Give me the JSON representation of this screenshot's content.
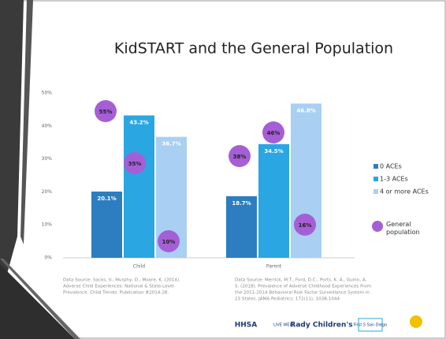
{
  "chart_data": {
    "type": "bar",
    "title": "KidSTART and the General Population",
    "categories": [
      "Child",
      "Parent"
    ],
    "series": [
      {
        "name": "0 ACEs",
        "color": "#2c7ec0",
        "values": [
          20.1,
          18.7
        ],
        "value_labels": [
          "20.1%",
          "18.7%"
        ]
      },
      {
        "name": "1-3 ACEs",
        "color": "#2aa6e2",
        "values": [
          43.2,
          34.5
        ],
        "value_labels": [
          "43.2%",
          "34.5%"
        ]
      },
      {
        "name": "4 or more ACEs",
        "color": "#a9d0f2",
        "values": [
          36.7,
          46.8
        ],
        "value_labels": [
          "36.7%",
          "46.8%"
        ]
      }
    ],
    "comparison": {
      "name": "General population",
      "color": "#a55fd6",
      "values": [
        [
          55,
          35,
          10
        ],
        [
          38,
          46,
          16
        ]
      ],
      "value_labels": [
        [
          "55%",
          "35%",
          "10%"
        ],
        [
          "38%",
          "46%",
          "16%"
        ]
      ]
    },
    "ylim": [
      0,
      50
    ],
    "yticks": [
      {
        "value": 0,
        "label": "0%"
      },
      {
        "value": 10,
        "label": "10%"
      },
      {
        "value": 20,
        "label": "20%"
      },
      {
        "value": 30,
        "label": "30%"
      },
      {
        "value": 40,
        "label": "40%"
      },
      {
        "value": 50,
        "label": "50%"
      }
    ],
    "grid": false,
    "legend": "right",
    "sources": [
      [
        "Data Source: Sacks, V., Murphy, D., Moore, K. (2014).",
        "Adverse Child Experiences: National & State-Level",
        "Prevalence. Child Trends. Publication #2014-28."
      ],
      [
        "Data Source:  Merrick, M.T., Ford, D.C., Ports, K. A., Guinn, A.",
        "S. (2018). Prevalence of Adverse Childhood Experiences From",
        "the 2011-2014 Behavioral Risk Factor Surveillance System in",
        "23 States. JAMA Pediatrics; 172(11), 1038-1044"
      ]
    ],
    "logos": [
      "HHSA",
      "LIVE WELL",
      "Rady Children's",
      "First 5 San Diego"
    ]
  }
}
